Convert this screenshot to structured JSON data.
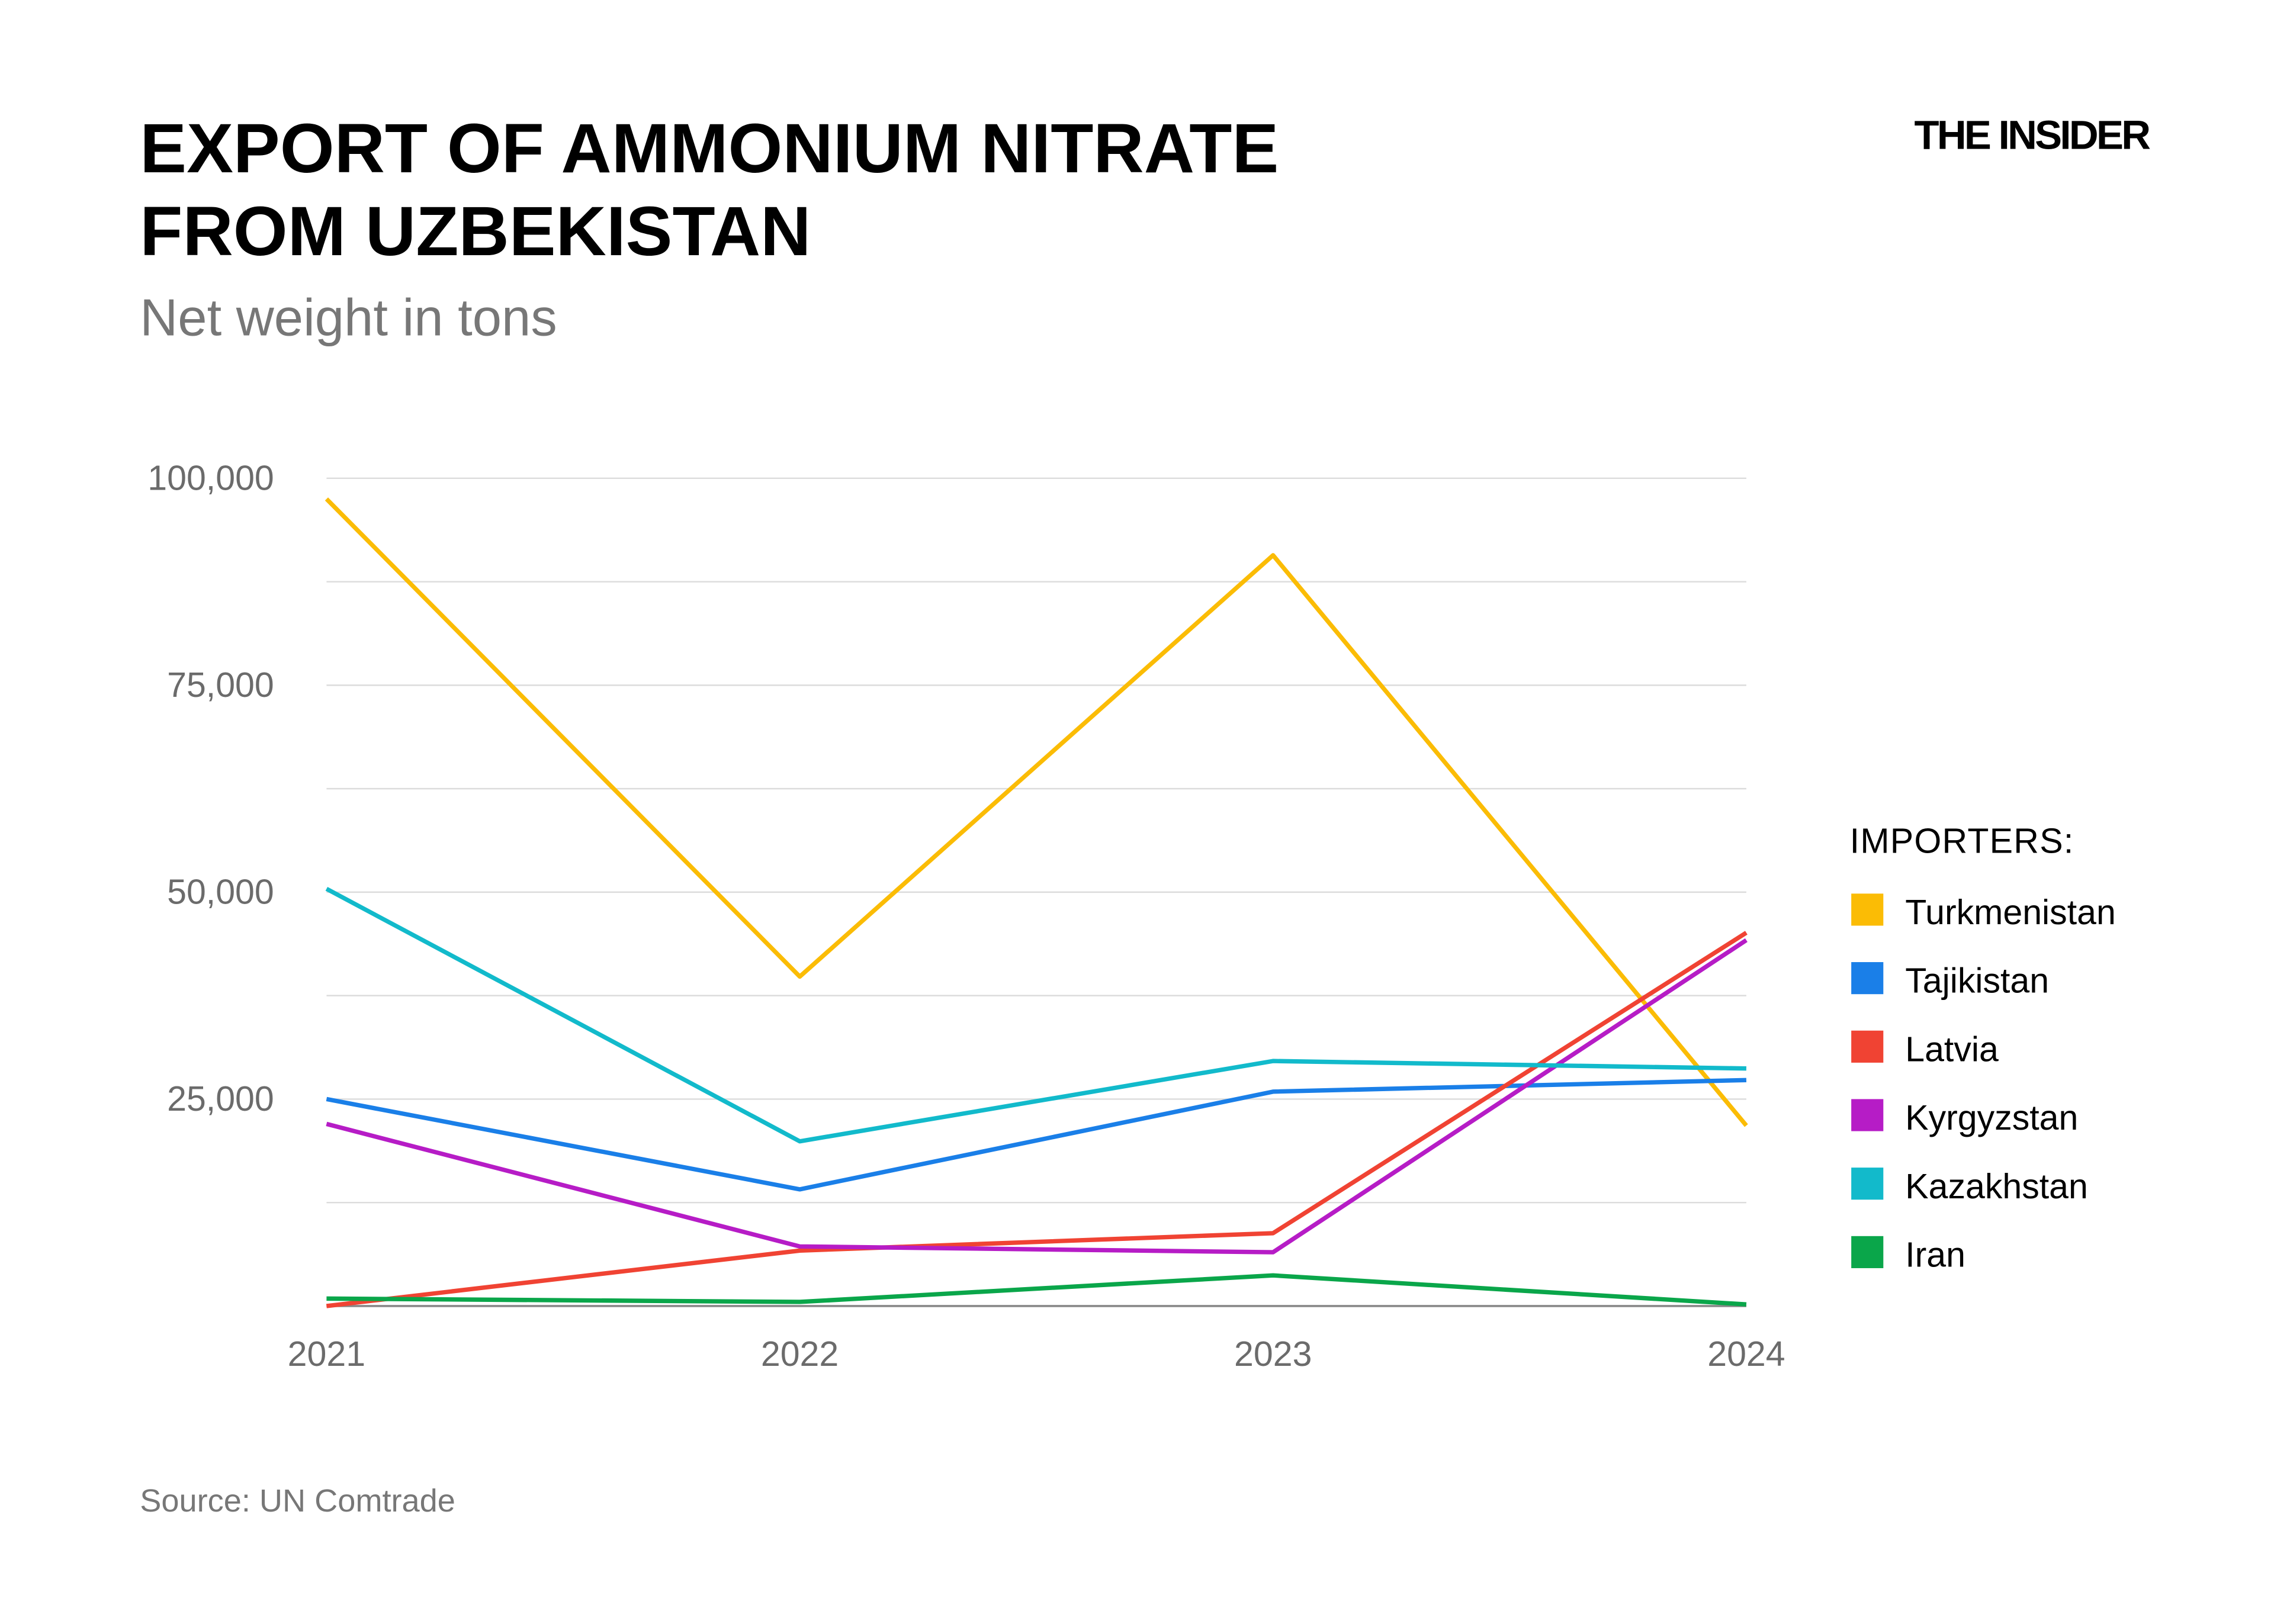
{
  "header": {
    "title_line1": "EXPORT OF AMMONIUM NITRATE",
    "title_line2": "FROM UZBEKISTAN",
    "subtitle": "Net weight in tons",
    "logo": "THE INSIDER"
  },
  "footer": {
    "source": "Source: UN Comtrade"
  },
  "chart_data": {
    "type": "line",
    "title": "EXPORT OF AMMONIUM NITRATE FROM UZBEKISTAN",
    "subtitle": "Net weight in tons",
    "xlabel": "",
    "ylabel": "",
    "x": [
      "2021",
      "2022",
      "2023",
      "2024"
    ],
    "ylim": [
      0,
      100000
    ],
    "yticks": [
      25000,
      50000,
      75000,
      100000
    ],
    "ytick_labels": [
      "25,000",
      "50,000",
      "75,000",
      "100,000"
    ],
    "grid": true,
    "legend_title": "IMPORTERS:",
    "legend_position": "right",
    "series": [
      {
        "name": "Turkmenistan",
        "color": "#FBBC05",
        "values": [
          97500,
          39800,
          90700,
          21800
        ]
      },
      {
        "name": "Tajikistan",
        "color": "#1A7FE8",
        "values": [
          25000,
          14100,
          25900,
          27300
        ]
      },
      {
        "name": "Latvia",
        "color": "#F04333",
        "values": [
          0,
          6700,
          8800,
          45100
        ]
      },
      {
        "name": "Kyrgyzstan",
        "color": "#B61CC6",
        "values": [
          22000,
          7200,
          6500,
          44200
        ]
      },
      {
        "name": "Kazakhstan",
        "color": "#12BACB",
        "values": [
          50400,
          19900,
          29600,
          28700
        ]
      },
      {
        "name": "Iran",
        "color": "#0AA64A",
        "values": [
          900,
          500,
          3700,
          200
        ]
      }
    ]
  }
}
